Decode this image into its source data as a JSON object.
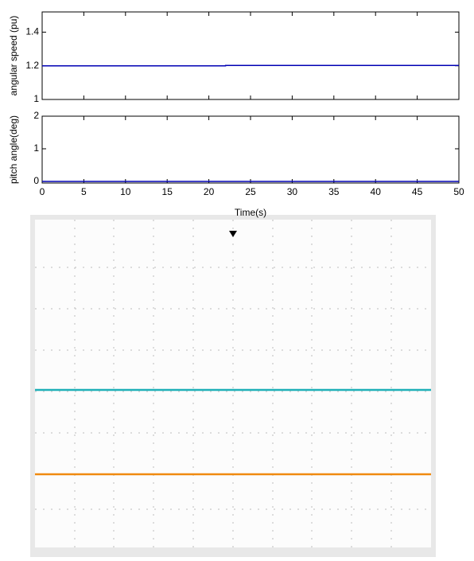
{
  "chart_data": [
    {
      "type": "line",
      "ylabel": "angular speed (pu)",
      "xlim": [
        0,
        50
      ],
      "ylim": [
        1,
        1.52
      ],
      "yticks": [
        1,
        1.2,
        1.4
      ],
      "xticks": [
        0,
        5,
        10,
        15,
        20,
        25,
        30,
        35,
        40,
        45,
        50
      ],
      "show_xtick_labels": false,
      "x": [
        0,
        22,
        22,
        50
      ],
      "series": [
        {
          "color": "#0000b4",
          "values": [
            1.2,
            1.2,
            1.202,
            1.202
          ]
        }
      ]
    },
    {
      "type": "line",
      "ylabel": "pitch angle(deg)",
      "xlabel": "Time(s)",
      "xlim": [
        0,
        50
      ],
      "ylim": [
        -0.05,
        2
      ],
      "yticks": [
        0,
        1,
        2
      ],
      "xticks": [
        0,
        5,
        10,
        15,
        20,
        25,
        30,
        35,
        40,
        45,
        50
      ],
      "show_xtick_labels": true,
      "x": [
        0,
        50
      ],
      "series": [
        {
          "color": "#0000b4",
          "values": [
            0,
            0
          ]
        }
      ]
    }
  ]
}
